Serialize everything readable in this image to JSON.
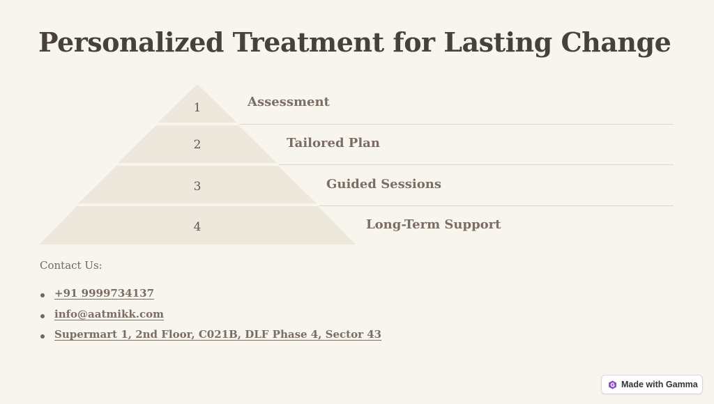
{
  "title": "Personalized Treatment for Lasting Change",
  "steps": [
    {
      "number": "1",
      "label": "Assessment"
    },
    {
      "number": "2",
      "label": "Tailored Plan"
    },
    {
      "number": "3",
      "label": "Guided Sessions"
    },
    {
      "number": "4",
      "label": "Long-Term Support"
    }
  ],
  "contact": {
    "heading": "Contact Us:",
    "items": [
      "+91 9999734137",
      "info@aatmikk.com",
      "Supermart 1, 2nd Floor, C021B, DLF Phase 4, Sector 43"
    ]
  },
  "badge": {
    "label": "Made with Gamma",
    "icon": "gamma-logo-icon"
  },
  "colors": {
    "background": "#f8f5ef",
    "pyramid": "#ede7dc",
    "title": "#47413a",
    "label": "#7a6e63",
    "gamma_accent": "#8b3fd9"
  }
}
